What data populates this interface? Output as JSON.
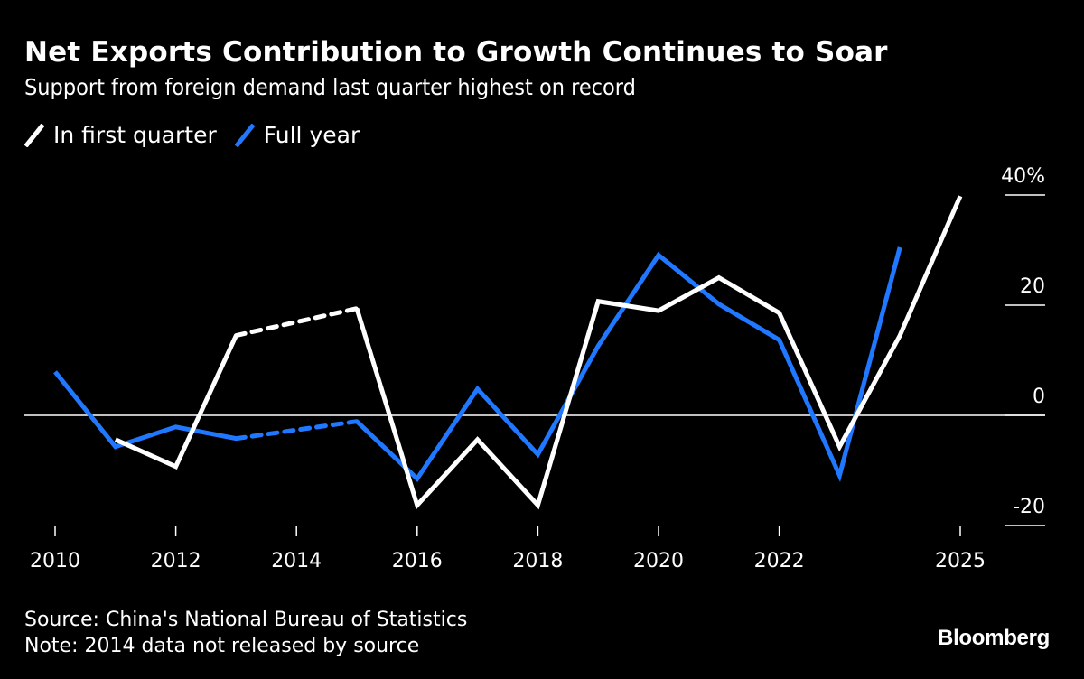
{
  "header": {
    "title": "Net Exports Contribution to Growth Continues to Soar",
    "subtitle": "Support from foreign demand last quarter highest on record"
  },
  "legend": [
    {
      "label": "In first quarter",
      "color": "#ffffff"
    },
    {
      "label": "Full year",
      "color": "#1f78ff"
    }
  ],
  "footer": {
    "source": "Source: China's National Bureau of Statistics",
    "note": "Note: 2014 data not released by source",
    "brand": "Bloomberg"
  },
  "chart_data": {
    "type": "line",
    "title": "Net Exports Contribution to Growth Continues to Soar",
    "subtitle": "Support from foreign demand last quarter highest on record",
    "xlabel": "",
    "ylabel": "%",
    "x": [
      2010,
      2011,
      2012,
      2013,
      2014,
      2015,
      2016,
      2017,
      2018,
      2019,
      2020,
      2021,
      2022,
      2023,
      2024,
      2025
    ],
    "xlim": [
      2010,
      2025
    ],
    "ylim": [
      -20,
      40
    ],
    "x_ticks": [
      "2010",
      "2012",
      "2014",
      "2016",
      "2018",
      "2020",
      "2022",
      "2025"
    ],
    "x_tick_values": [
      2010,
      2012,
      2014,
      2016,
      2018,
      2020,
      2022,
      2025
    ],
    "y_ticks": [
      "-20",
      "0",
      "20",
      "40%"
    ],
    "y_tick_values": [
      -20,
      0,
      20,
      40
    ],
    "grid": "horizontal-right-ticks",
    "zero_line": true,
    "legend_position": "top-left",
    "gap_note": "2014 missing; gap bridged with dashed line",
    "series": [
      {
        "name": "In first quarter",
        "color": "#ffffff",
        "values": [
          null,
          -4.4,
          -9.3,
          14.5,
          null,
          19.4,
          -16.3,
          -4.4,
          -16.3,
          20.7,
          19.0,
          25.0,
          18.6,
          -5.7,
          14.5,
          39.8
        ]
      },
      {
        "name": "Full year",
        "color": "#1f78ff",
        "values": [
          7.9,
          -5.7,
          -2.1,
          -4.2,
          null,
          -1.1,
          -11.5,
          4.8,
          -7.1,
          12.6,
          29.1,
          20.2,
          13.7,
          -10.9,
          30.5,
          null
        ]
      }
    ]
  }
}
